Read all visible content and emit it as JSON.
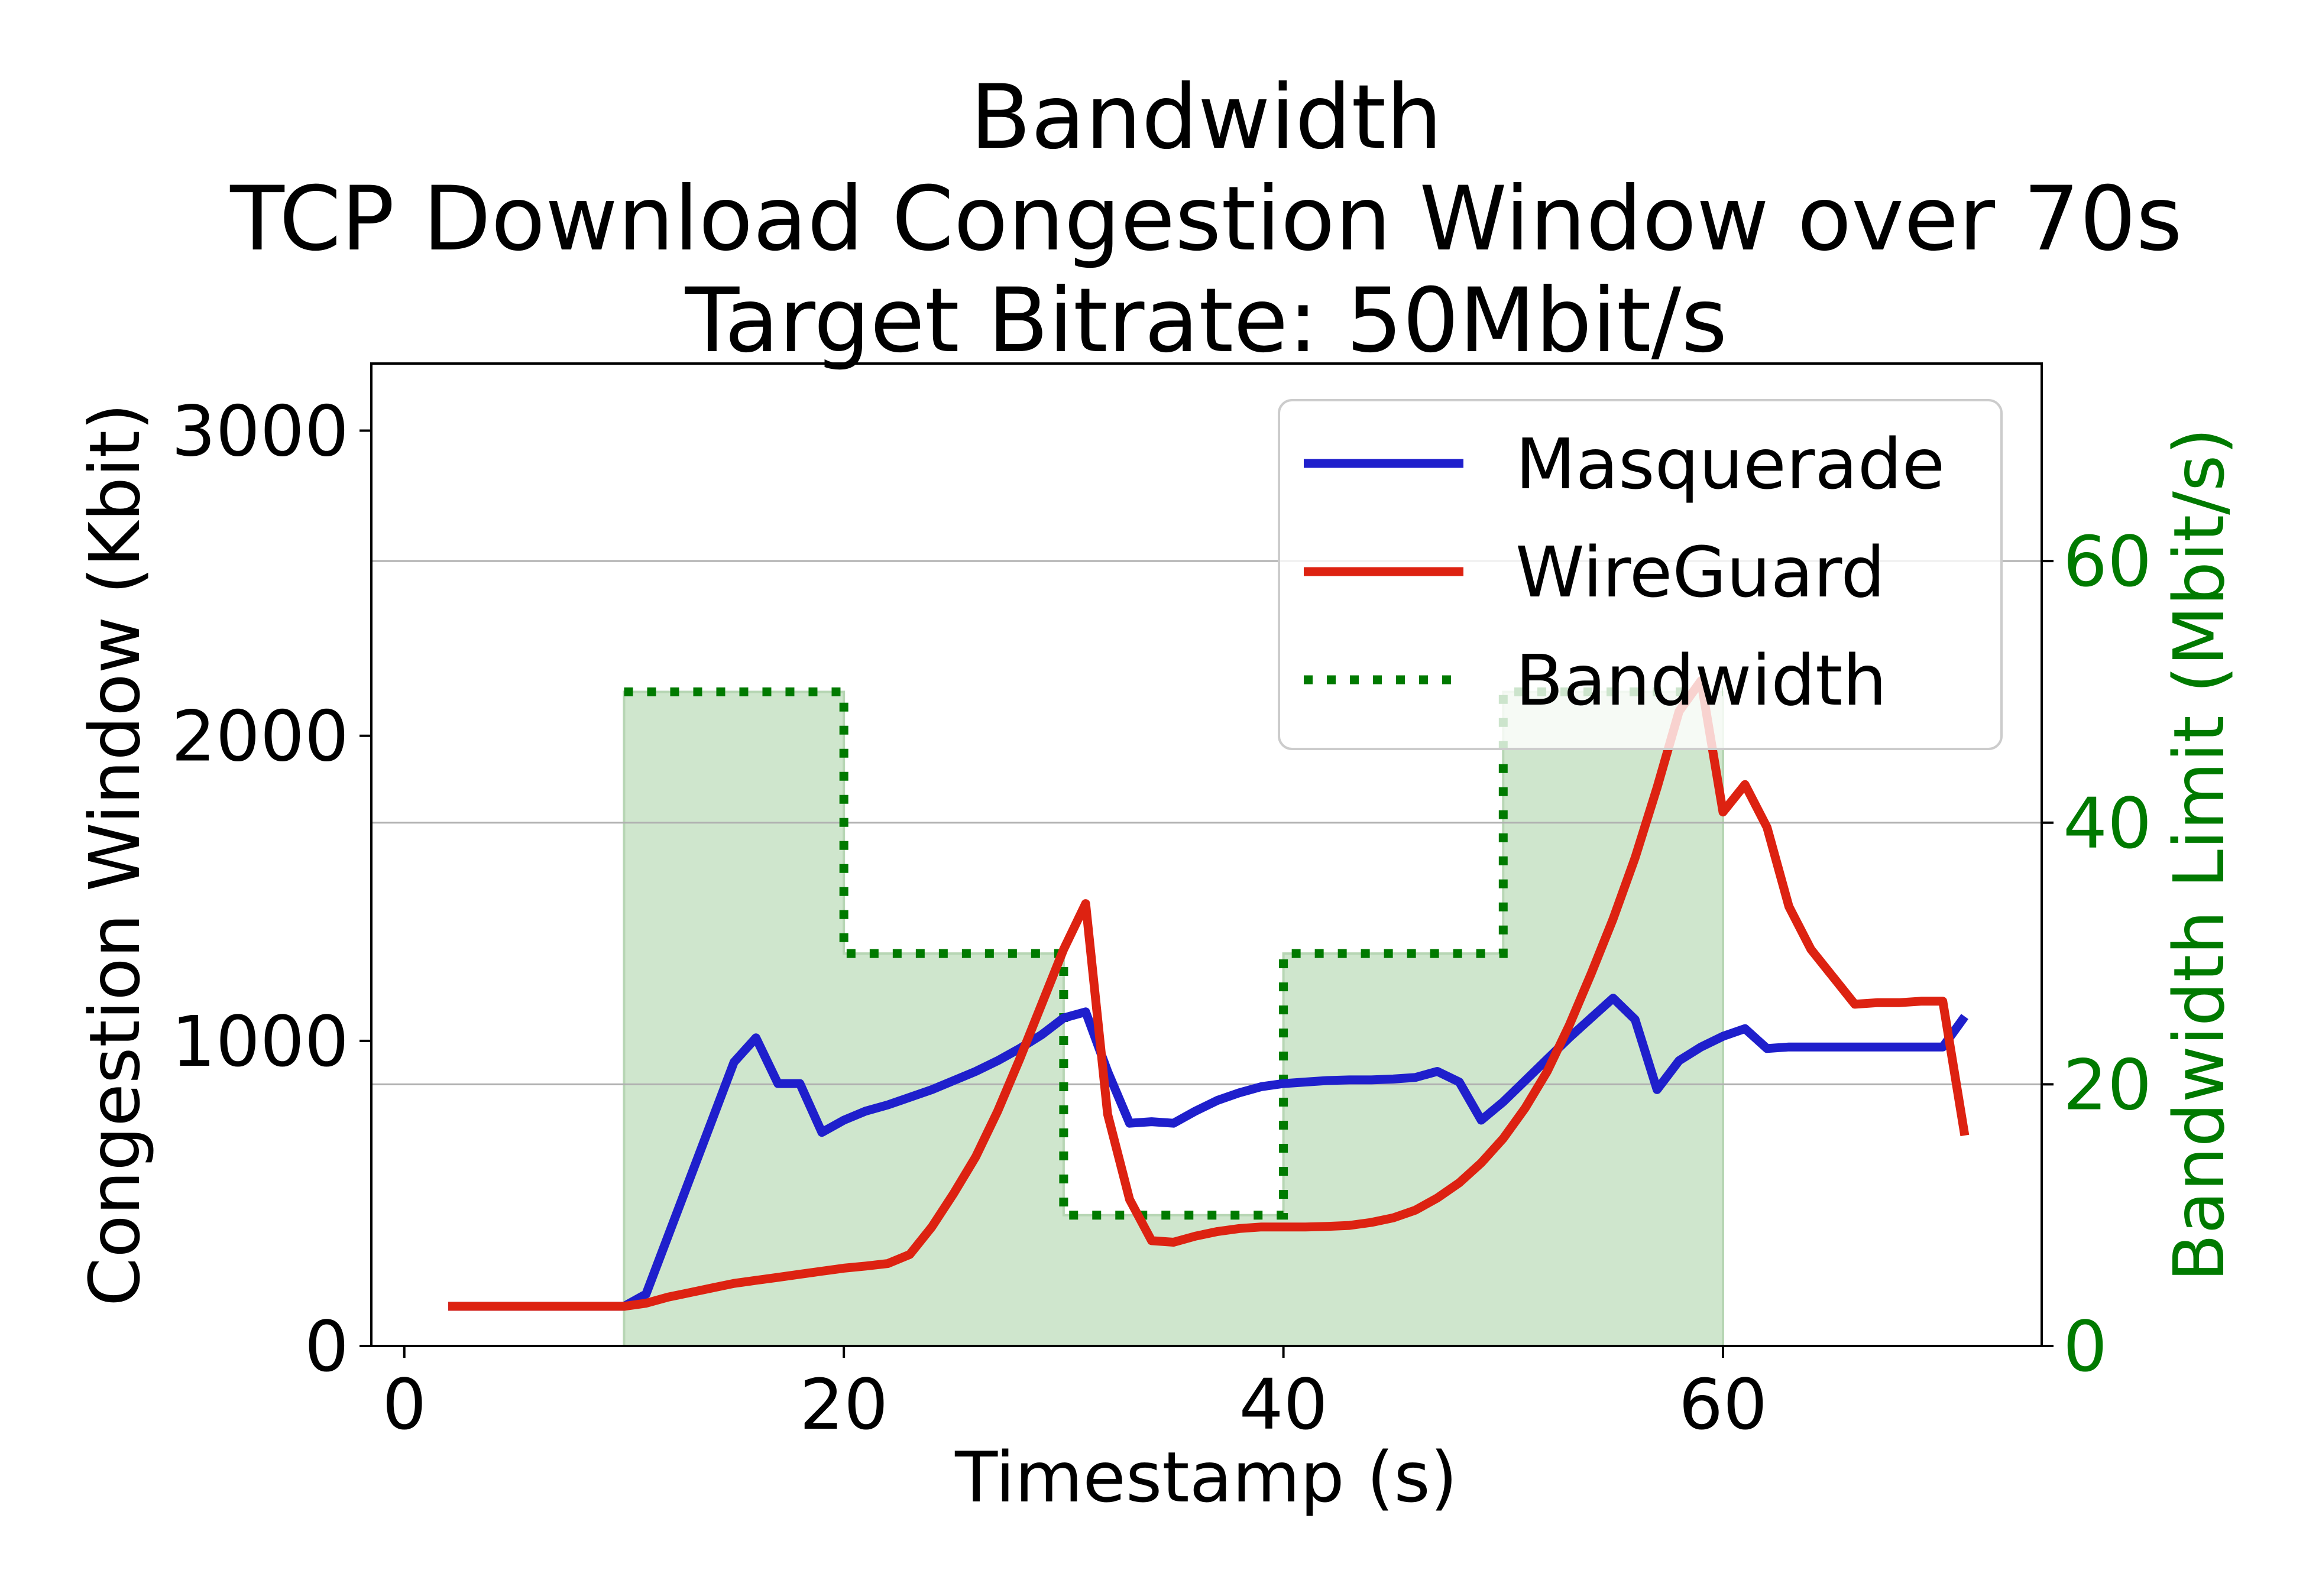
{
  "chart_data": {
    "type": "line",
    "title_lines": [
      "Bandwidth",
      "TCP Download Congestion Window over 70s",
      "Target Bitrate: 50Mbit/s"
    ],
    "xlabel": "Timestamp (s)",
    "ylabel": "Congestion Window (Kbit)",
    "y2label": "Bandwidth Limit (Mbit/s)",
    "xlim": [
      -1.5,
      74.5
    ],
    "ylim": [
      0,
      3220
    ],
    "y2lim": [
      0,
      75.1
    ],
    "xticks": [
      0,
      20,
      40,
      60
    ],
    "yticks": [
      0,
      1000,
      2000,
      3000
    ],
    "y2ticks": [
      0,
      20,
      40,
      60
    ],
    "grid": "horizontal lines on secondary axis",
    "legend_placement": "top-right",
    "colors": {
      "masquerade": "#1f1fcc",
      "wireguard": "#dd2211",
      "bandwidth": "#007a00",
      "bandwidth_fill": "#cfe6cd",
      "y2_text": "#007a00"
    },
    "series": [
      {
        "name": "Masquerade",
        "axis": "left",
        "x": [
          2,
          3,
          4,
          5,
          6,
          7,
          8,
          9,
          10,
          11,
          12,
          13,
          14,
          15,
          16,
          17,
          18,
          19,
          20,
          21,
          22,
          23,
          24,
          25,
          26,
          27,
          28,
          29,
          30,
          31,
          32,
          33,
          34,
          35,
          36,
          37,
          38,
          39,
          40,
          41,
          42,
          43,
          44,
          45,
          46,
          47,
          48,
          49,
          50,
          51,
          52,
          53,
          54,
          55,
          56,
          57,
          58,
          59,
          60,
          61,
          62,
          63,
          64,
          65,
          66,
          67,
          68,
          69,
          70,
          71
        ],
        "y": [
          130,
          130,
          130,
          130,
          130,
          130,
          130,
          130,
          130,
          170,
          360,
          550,
          740,
          930,
          1010,
          860,
          860,
          700,
          740,
          770,
          790,
          815,
          840,
          870,
          900,
          935,
          975,
          1020,
          1075,
          1095,
          900,
          730,
          735,
          730,
          770,
          805,
          830,
          850,
          860,
          865,
          870,
          872,
          872,
          875,
          880,
          900,
          865,
          740,
          800,
          870,
          940,
          1010,
          1075,
          1140,
          1070,
          840,
          935,
          980,
          1015,
          1040,
          975,
          980,
          980,
          980,
          980,
          980,
          980,
          980,
          980,
          1080
        ]
      },
      {
        "name": "WireGuard",
        "axis": "left",
        "x": [
          2,
          3,
          4,
          5,
          6,
          7,
          8,
          9,
          10,
          11,
          12,
          13,
          14,
          15,
          16,
          17,
          18,
          19,
          20,
          21,
          22,
          23,
          24,
          25,
          26,
          27,
          28,
          29,
          30,
          31,
          32,
          33,
          34,
          35,
          36,
          37,
          38,
          39,
          40,
          41,
          42,
          43,
          44,
          45,
          46,
          47,
          48,
          49,
          50,
          51,
          52,
          53,
          54,
          55,
          56,
          57,
          58,
          59,
          60,
          61,
          62,
          63,
          64,
          65,
          66,
          67,
          68,
          69,
          70,
          71
        ],
        "y": [
          130,
          130,
          130,
          130,
          130,
          130,
          130,
          130,
          130,
          140,
          160,
          175,
          190,
          205,
          215,
          225,
          235,
          245,
          255,
          262,
          270,
          300,
          390,
          500,
          620,
          770,
          940,
          1120,
          1300,
          1450,
          760,
          480,
          345,
          340,
          360,
          375,
          385,
          390,
          390,
          390,
          392,
          395,
          405,
          420,
          445,
          485,
          535,
          600,
          680,
          780,
          900,
          1050,
          1220,
          1400,
          1600,
          1830,
          2080,
          2180,
          1750,
          1840,
          1700,
          1440,
          1300,
          1210,
          1120,
          1125,
          1125,
          1130,
          1130,
          690
        ]
      },
      {
        "name": "Bandwidth",
        "axis": "right",
        "style": "dotted-step",
        "x": [
          10,
          20,
          20,
          30,
          30,
          40,
          40,
          50,
          50,
          60
        ],
        "y": [
          50,
          50,
          30,
          30,
          10,
          10,
          30,
          30,
          50,
          50
        ]
      }
    ]
  }
}
